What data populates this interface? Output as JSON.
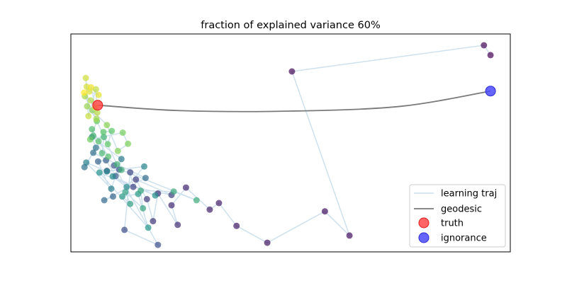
{
  "chart_data": {
    "type": "scatter",
    "title": "fraction of explained variance 60%",
    "xlabel": "",
    "ylabel": "",
    "grid": false,
    "axes_ticks": false,
    "xlim": [
      0,
      100
    ],
    "ylim": [
      0,
      100
    ],
    "legend_position": "bottom-right",
    "colors": {
      "trajectory": "#9ec4dc",
      "geodesic": "#7a7a7a",
      "truth": "#ff4a4a",
      "ignorance": "#4b4bff",
      "colormap": [
        "#440154",
        "#3b528b",
        "#21918c",
        "#5ec962",
        "#fde725"
      ]
    },
    "legend": [
      {
        "label": "learning traj",
        "kind": "line",
        "color_key": "trajectory"
      },
      {
        "label": "geodesic",
        "kind": "line",
        "color_key": "geodesic"
      },
      {
        "label": "truth",
        "kind": "marker",
        "color_key": "truth"
      },
      {
        "label": "ignorance",
        "kind": "marker",
        "color_key": "ignorance"
      }
    ],
    "series": [
      {
        "name": "learning traj",
        "kind": "trajectory",
        "points": [
          [
            95.5,
            90.3
          ],
          [
            94.0,
            94.8
          ],
          [
            50.3,
            82.8
          ],
          [
            63.4,
            7.5
          ],
          [
            57.8,
            18.6
          ],
          [
            44.7,
            4.2
          ],
          [
            37.7,
            11.9
          ],
          [
            33.7,
            22.4
          ],
          [
            31.6,
            19.4
          ],
          [
            26.2,
            29.5
          ],
          [
            22.9,
            21.4
          ],
          [
            24.3,
            12.4
          ],
          [
            19.8,
            26.8
          ],
          [
            18.7,
            14.1
          ],
          [
            17.3,
            24.2
          ],
          [
            14.8,
            33.2
          ],
          [
            22.9,
            26.1
          ],
          [
            14.2,
            29.8
          ],
          [
            13.5,
            36.5
          ],
          [
            12.2,
            10.1
          ],
          [
            19.8,
            3.2
          ],
          [
            9.8,
            39.6
          ],
          [
            11.0,
            37.8
          ],
          [
            8.2,
            37.2
          ],
          [
            10.2,
            34.8
          ],
          [
            8.0,
            42.0
          ],
          [
            6.2,
            41.5
          ],
          [
            9.6,
            25.4
          ],
          [
            7.6,
            23.7
          ],
          [
            17.0,
            33.9
          ],
          [
            5.1,
            45.5
          ],
          [
            3.1,
            38.9
          ],
          [
            5.7,
            47.8
          ],
          [
            4.8,
            52.7
          ],
          [
            11.5,
            42.6
          ],
          [
            9.2,
            29.0
          ],
          [
            3.5,
            41.0
          ],
          [
            8.2,
            36.9
          ],
          [
            16.7,
            39.2
          ],
          [
            12.7,
            29.8
          ],
          [
            9.5,
            34.6
          ],
          [
            19.2,
            25.9
          ],
          [
            6.5,
            36.4
          ],
          [
            17.6,
            11.1
          ],
          [
            15.3,
            26.6
          ],
          [
            11.7,
            25.4
          ],
          [
            13.5,
            22.0
          ],
          [
            12.4,
            27.4
          ],
          [
            16.4,
            20.0
          ],
          [
            15.9,
            28.1
          ],
          [
            23.4,
            27.7
          ],
          [
            28.6,
            23.7
          ],
          [
            11.5,
            37.6
          ],
          [
            10.5,
            40.2
          ],
          [
            7.5,
            52.7
          ],
          [
            7.1,
            45.3
          ],
          [
            5.1,
            53.3
          ],
          [
            4.8,
            56.3
          ],
          [
            8.5,
            43.7
          ],
          [
            6.3,
            50.7
          ],
          [
            7.4,
            55.0
          ],
          [
            9.3,
            55.5
          ],
          [
            8.4,
            49.4
          ],
          [
            5.9,
            60.0
          ],
          [
            4.4,
            51.6
          ],
          [
            11.8,
            54.7
          ],
          [
            13.0,
            49.6
          ],
          [
            10.7,
            46.3
          ],
          [
            8.2,
            58.2
          ],
          [
            4.9,
            65.0
          ],
          [
            3.7,
            66.8
          ],
          [
            5.8,
            61.0
          ],
          [
            3.2,
            71.4
          ],
          [
            4.5,
            69.5
          ],
          [
            6.0,
            63.9
          ],
          [
            5.7,
            74.6
          ],
          [
            4.0,
            62.3
          ],
          [
            3.4,
            79.8
          ],
          [
            3.6,
            75.8
          ],
          [
            4.2,
            73.6
          ],
          [
            6.3,
            72.0
          ],
          [
            4.6,
            75.5
          ],
          [
            5.6,
            66.4
          ],
          [
            3.0,
            73.1
          ]
        ]
      },
      {
        "name": "geodesic",
        "kind": "line",
        "points": [
          [
            6.1,
            67.3
          ],
          [
            25,
            64.8
          ],
          [
            50,
            64.6
          ],
          [
            75,
            66.8
          ],
          [
            95.5,
            73.8
          ]
        ]
      },
      {
        "name": "truth",
        "kind": "marker",
        "points": [
          [
            6.1,
            67.3
          ]
        ]
      },
      {
        "name": "ignorance",
        "kind": "marker",
        "points": [
          [
            95.5,
            73.8
          ]
        ]
      }
    ]
  }
}
